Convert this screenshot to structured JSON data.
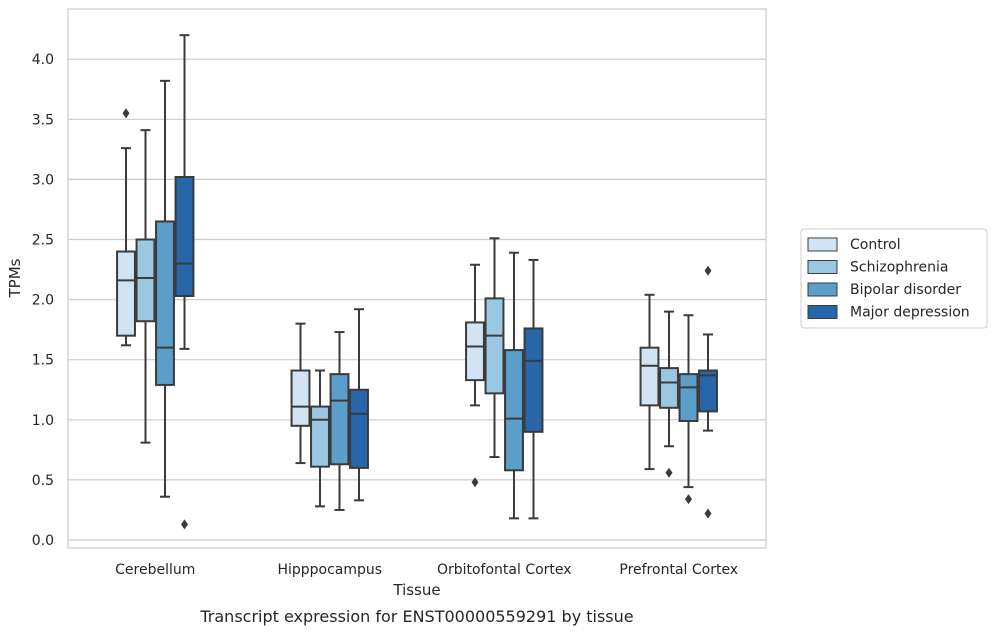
{
  "chart_data": {
    "type": "boxplot",
    "title": "",
    "caption": "Transcript expression for ENST00000559291 by tissue",
    "xlabel": "Tissue",
    "ylabel": "TPMs",
    "ylim": [
      -0.05,
      4.4
    ],
    "yticks": [
      "0.0",
      "0.5",
      "1.0",
      "1.5",
      "2.0",
      "2.5",
      "3.0",
      "3.5",
      "4.0"
    ],
    "grid": "horizontal",
    "legend_position": "right",
    "categories": [
      "Cerebellum",
      "Hipppocampus",
      "Orbitofontal Cortex",
      "Prefrontal Cortex"
    ],
    "series": [
      {
        "name": "Control",
        "color": "#d2e3f3",
        "boxes": [
          {
            "whislo": 1.62,
            "q1": 1.7,
            "med": 2.16,
            "q3": 2.4,
            "whishi": 3.26,
            "fliers": [
              3.55
            ]
          },
          {
            "whislo": 0.64,
            "q1": 0.95,
            "med": 1.11,
            "q3": 1.41,
            "whishi": 1.8,
            "fliers": []
          },
          {
            "whislo": 1.12,
            "q1": 1.33,
            "med": 1.61,
            "q3": 1.81,
            "whishi": 2.29,
            "fliers": [
              0.48
            ]
          },
          {
            "whislo": 0.59,
            "q1": 1.12,
            "med": 1.45,
            "q3": 1.6,
            "whishi": 2.04,
            "fliers": []
          }
        ]
      },
      {
        "name": "Schizophrenia",
        "color": "#9ac8e0",
        "boxes": [
          {
            "whislo": 0.81,
            "q1": 1.82,
            "med": 2.18,
            "q3": 2.5,
            "whishi": 3.41,
            "fliers": []
          },
          {
            "whislo": 0.28,
            "q1": 0.61,
            "med": 1.0,
            "q3": 1.11,
            "whishi": 1.41,
            "fliers": []
          },
          {
            "whislo": 0.69,
            "q1": 1.22,
            "med": 1.7,
            "q3": 2.01,
            "whishi": 2.51,
            "fliers": []
          },
          {
            "whislo": 0.78,
            "q1": 1.1,
            "med": 1.31,
            "q3": 1.43,
            "whishi": 1.9,
            "fliers": [
              0.56
            ]
          }
        ]
      },
      {
        "name": "Bipolar disorder",
        "color": "#5a9ec9",
        "boxes": [
          {
            "whislo": 0.36,
            "q1": 1.29,
            "med": 1.6,
            "q3": 2.65,
            "whishi": 3.82,
            "fliers": []
          },
          {
            "whislo": 0.25,
            "q1": 0.63,
            "med": 1.16,
            "q3": 1.38,
            "whishi": 1.73,
            "fliers": []
          },
          {
            "whislo": 0.18,
            "q1": 0.58,
            "med": 1.01,
            "q3": 1.58,
            "whishi": 2.39,
            "fliers": []
          },
          {
            "whislo": 0.44,
            "q1": 0.99,
            "med": 1.27,
            "q3": 1.38,
            "whishi": 1.87,
            "fliers": [
              0.34
            ]
          }
        ]
      },
      {
        "name": "Major depression",
        "color": "#2666a9",
        "boxes": [
          {
            "whislo": 1.59,
            "q1": 2.03,
            "med": 2.3,
            "q3": 3.02,
            "whishi": 4.2,
            "fliers": [
              0.13
            ]
          },
          {
            "whislo": 0.33,
            "q1": 0.6,
            "med": 1.05,
            "q3": 1.25,
            "whishi": 1.92,
            "fliers": []
          },
          {
            "whislo": 0.18,
            "q1": 0.9,
            "med": 1.49,
            "q3": 1.76,
            "whishi": 2.33,
            "fliers": []
          },
          {
            "whislo": 0.91,
            "q1": 1.07,
            "med": 1.37,
            "q3": 1.41,
            "whishi": 1.71,
            "fliers": [
              2.24,
              0.22
            ]
          }
        ]
      }
    ]
  }
}
